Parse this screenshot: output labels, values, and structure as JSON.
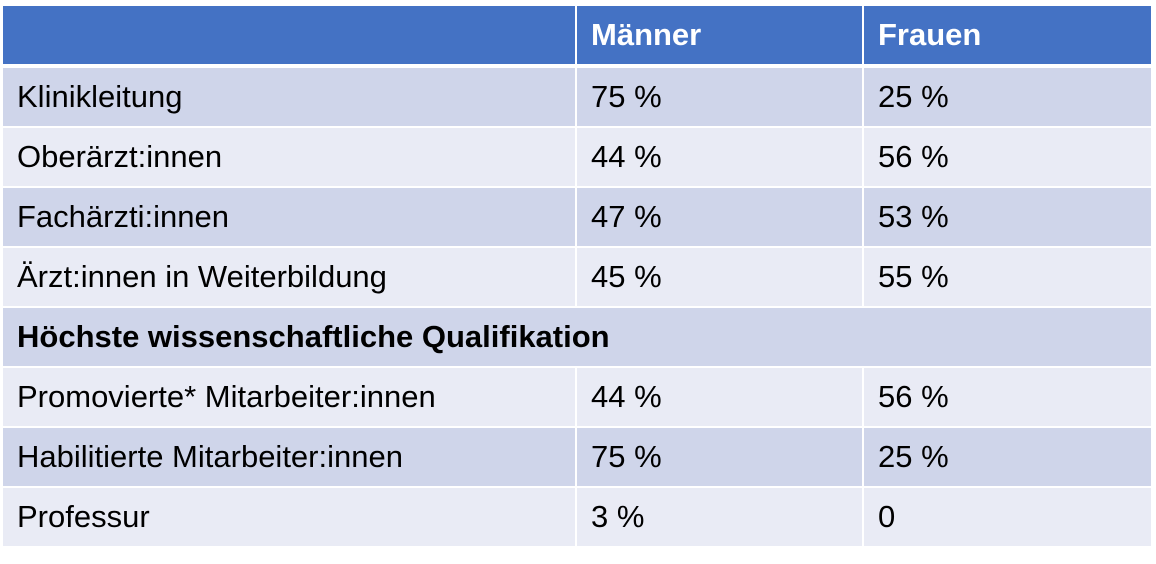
{
  "header": {
    "col1": "",
    "col2": "Männer",
    "col3": "Frauen"
  },
  "rows": [
    {
      "label": "Klinikleitung",
      "men": "75 %",
      "women": "25 %"
    },
    {
      "label": "Oberärzt:innen",
      "men": "44 %",
      "women": "56 %"
    },
    {
      "label": "Fachärzti:innen",
      "men": "47 %",
      "women": "53 %"
    },
    {
      "label": "Ärzt:innen in Weiterbildung",
      "men": "45 %",
      "women": "55 %"
    }
  ],
  "section": {
    "title": "Höchste wissenschaftliche Qualifikation"
  },
  "section_rows": [
    {
      "label": "Promovierte* Mitarbeiter:innen",
      "men": "44 %",
      "women": "56 %"
    },
    {
      "label": "Habilitierte Mitarbeiter:innen",
      "men": "75 %",
      "women": "25 %"
    },
    {
      "label": "Professur",
      "men": "3 %",
      "women": "0"
    }
  ],
  "colors": {
    "header_bg": "#4472c4",
    "row_dark": "#cfd5ea",
    "row_light": "#e9ebf5"
  }
}
